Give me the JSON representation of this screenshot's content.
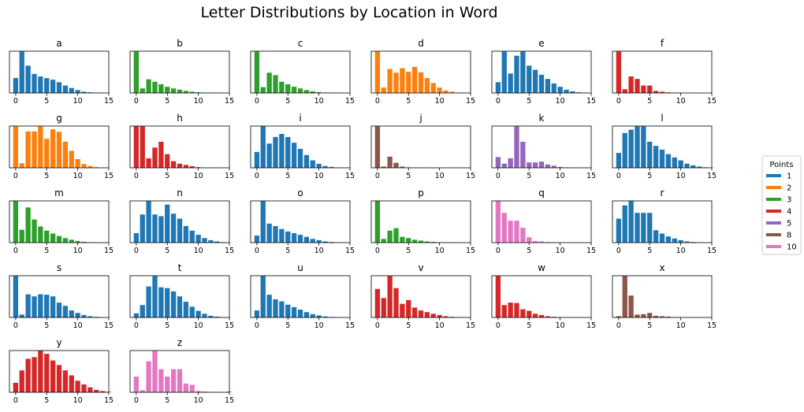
{
  "chart_data": {
    "type": "bar",
    "title": "Letter Distributions by Location in Word",
    "x_ticks": [
      0,
      5,
      10,
      15
    ],
    "xlim": [
      -1,
      15
    ],
    "legend": {
      "title": "Points",
      "placement": "right",
      "entries": [
        {
          "label": "1",
          "color": "#1f77b4"
        },
        {
          "label": "2",
          "color": "#ff7f0e"
        },
        {
          "label": "3",
          "color": "#2ca02c"
        },
        {
          "label": "4",
          "color": "#d62728"
        },
        {
          "label": "5",
          "color": "#9467bd"
        },
        {
          "label": "8",
          "color": "#8c564b"
        },
        {
          "label": "10",
          "color": "#e377c2"
        }
      ]
    },
    "panels": [
      {
        "letter": "a",
        "color": "#1f77b4",
        "values": [
          0.36,
          1.0,
          0.66,
          0.46,
          0.4,
          0.36,
          0.32,
          0.26,
          0.18,
          0.12,
          0.07,
          0.03,
          0.015,
          0.008,
          0.004,
          0.002
        ]
      },
      {
        "letter": "b",
        "color": "#2ca02c",
        "values": [
          1.0,
          0.11,
          0.33,
          0.27,
          0.21,
          0.15,
          0.11,
          0.08,
          0.05,
          0.03,
          0.015,
          0.008,
          0.004,
          0.002,
          0.001,
          0.0
        ]
      },
      {
        "letter": "c",
        "color": "#2ca02c",
        "values": [
          1.0,
          0.14,
          0.49,
          0.43,
          0.27,
          0.21,
          0.15,
          0.11,
          0.07,
          0.04,
          0.02,
          0.01,
          0.005,
          0.002,
          0.001,
          0.0
        ]
      },
      {
        "letter": "d",
        "color": "#ff7f0e",
        "values": [
          1.0,
          0.13,
          0.58,
          0.49,
          0.6,
          0.51,
          0.63,
          0.5,
          0.36,
          0.24,
          0.13,
          0.06,
          0.03,
          0.01,
          0.005,
          0.0
        ]
      },
      {
        "letter": "e",
        "color": "#1f77b4",
        "values": [
          0.26,
          1.0,
          0.47,
          0.9,
          1.0,
          0.66,
          0.56,
          0.44,
          0.34,
          0.23,
          0.15,
          0.08,
          0.04,
          0.015,
          0.006,
          0.0
        ]
      },
      {
        "letter": "f",
        "color": "#d62728",
        "values": [
          1.0,
          0.09,
          0.4,
          0.34,
          0.18,
          0.18,
          0.05,
          0.03,
          0.015,
          0.005,
          0.002,
          0.001,
          0.0,
          0.0,
          0.0,
          0.0
        ]
      },
      {
        "letter": "g",
        "color": "#ff7f0e",
        "values": [
          1.0,
          0.11,
          0.88,
          0.88,
          1.0,
          0.7,
          0.93,
          0.87,
          0.63,
          0.41,
          0.21,
          0.09,
          0.04,
          0.015,
          0.005,
          0.0
        ]
      },
      {
        "letter": "h",
        "color": "#d62728",
        "values": [
          1.0,
          1.0,
          0.23,
          0.49,
          0.63,
          0.33,
          0.16,
          0.1,
          0.07,
          0.04,
          0.015,
          0.005,
          0.002,
          0.0,
          0.0,
          0.0
        ]
      },
      {
        "letter": "i",
        "color": "#1f77b4",
        "values": [
          0.36,
          0.94,
          0.55,
          0.7,
          0.77,
          0.7,
          0.57,
          0.43,
          0.29,
          0.17,
          0.09,
          0.04,
          0.02,
          0.008,
          0.003,
          0.001
        ]
      },
      {
        "letter": "j",
        "color": "#8c564b",
        "values": [
          1.0,
          0.03,
          0.27,
          0.12,
          0.03,
          0.01,
          0.005,
          0.002,
          0.0,
          0.0,
          0.0,
          0.0,
          0.0,
          0.0,
          0.0,
          0.0
        ]
      },
      {
        "letter": "k",
        "color": "#9467bd",
        "values": [
          0.26,
          0.1,
          0.23,
          1.0,
          0.63,
          0.13,
          0.13,
          0.15,
          0.08,
          0.05,
          0.02,
          0.01,
          0.003,
          0.0,
          0.0,
          0.0
        ]
      },
      {
        "letter": "l",
        "color": "#1f77b4",
        "values": [
          0.36,
          0.84,
          0.92,
          1.0,
          1.0,
          0.63,
          0.53,
          0.44,
          0.33,
          0.25,
          0.18,
          0.1,
          0.06,
          0.03,
          0.012,
          0.005
        ]
      },
      {
        "letter": "m",
        "color": "#2ca02c",
        "values": [
          1.0,
          0.31,
          0.85,
          0.56,
          0.39,
          0.29,
          0.22,
          0.16,
          0.11,
          0.07,
          0.04,
          0.02,
          0.01,
          0.005,
          0.002,
          0.0
        ]
      },
      {
        "letter": "n",
        "color": "#1f77b4",
        "values": [
          0.23,
          0.68,
          1.0,
          0.68,
          0.64,
          0.92,
          0.7,
          0.58,
          0.4,
          0.29,
          0.19,
          0.11,
          0.06,
          0.03,
          0.012,
          0.004
        ]
      },
      {
        "letter": "o",
        "color": "#1f77b4",
        "values": [
          0.17,
          1.0,
          0.46,
          0.4,
          0.33,
          0.27,
          0.23,
          0.19,
          0.14,
          0.09,
          0.06,
          0.03,
          0.015,
          0.007,
          0.003,
          0.001
        ]
      },
      {
        "letter": "p",
        "color": "#2ca02c",
        "values": [
          1.0,
          0.09,
          0.29,
          0.35,
          0.14,
          0.11,
          0.07,
          0.05,
          0.03,
          0.02,
          0.01,
          0.005,
          0.002,
          0.001,
          0.0,
          0.0
        ]
      },
      {
        "letter": "q",
        "color": "#e377c2",
        "values": [
          1.0,
          0.72,
          0.53,
          0.53,
          0.36,
          0.13,
          0.04,
          0.03,
          0.015,
          0.005,
          0.002,
          0.0,
          0.0,
          0.0,
          0.0,
          0.0
        ]
      },
      {
        "letter": "r",
        "color": "#1f77b4",
        "values": [
          0.58,
          0.9,
          1.0,
          0.72,
          0.72,
          0.72,
          0.3,
          0.22,
          0.15,
          0.1,
          0.06,
          0.03,
          0.015,
          0.006,
          0.002,
          0.001
        ]
      },
      {
        "letter": "s",
        "color": "#1f77b4",
        "values": [
          1.0,
          0.07,
          0.56,
          0.51,
          0.56,
          0.55,
          0.51,
          0.36,
          0.28,
          0.17,
          0.11,
          0.06,
          0.03,
          0.015,
          0.006,
          0.002
        ]
      },
      {
        "letter": "t",
        "color": "#1f77b4",
        "values": [
          0.1,
          0.3,
          0.75,
          1.0,
          0.73,
          0.71,
          0.63,
          0.51,
          0.38,
          0.26,
          0.16,
          0.09,
          0.04,
          0.02,
          0.008,
          0.003
        ]
      },
      {
        "letter": "u",
        "color": "#1f77b4",
        "values": [
          0.17,
          1.0,
          0.55,
          0.44,
          0.39,
          0.31,
          0.25,
          0.19,
          0.13,
          0.08,
          0.05,
          0.025,
          0.012,
          0.005,
          0.002,
          0.0
        ]
      },
      {
        "letter": "v",
        "color": "#d62728",
        "values": [
          0.69,
          0.47,
          1.0,
          0.71,
          0.33,
          0.42,
          0.24,
          0.17,
          0.13,
          0.09,
          0.06,
          0.03,
          0.015,
          0.007,
          0.003,
          0.0
        ]
      },
      {
        "letter": "w",
        "color": "#d62728",
        "values": [
          1.0,
          0.3,
          0.36,
          0.35,
          0.2,
          0.16,
          0.09,
          0.06,
          0.03,
          0.015,
          0.006,
          0.002,
          0.0,
          0.0,
          0.0,
          0.0
        ]
      },
      {
        "letter": "x",
        "color": "#8c564b",
        "values": [
          0.03,
          1.0,
          0.53,
          0.07,
          0.08,
          0.11,
          0.04,
          0.03,
          0.02,
          0.01,
          0.005,
          0.0,
          0.0,
          0.0,
          0.0,
          0.0
        ]
      },
      {
        "letter": "y",
        "color": "#d62728",
        "values": [
          0.23,
          0.53,
          0.81,
          0.85,
          1.0,
          0.93,
          0.77,
          0.66,
          0.53,
          0.41,
          0.28,
          0.19,
          0.12,
          0.06,
          0.03,
          0.012
        ]
      },
      {
        "letter": "z",
        "color": "#e377c2",
        "values": [
          0.38,
          0.05,
          0.75,
          1.0,
          0.56,
          0.38,
          0.56,
          0.56,
          0.21,
          0.18,
          0.03,
          0.02,
          0.01,
          0.005,
          0.0,
          0.02
        ]
      }
    ]
  }
}
